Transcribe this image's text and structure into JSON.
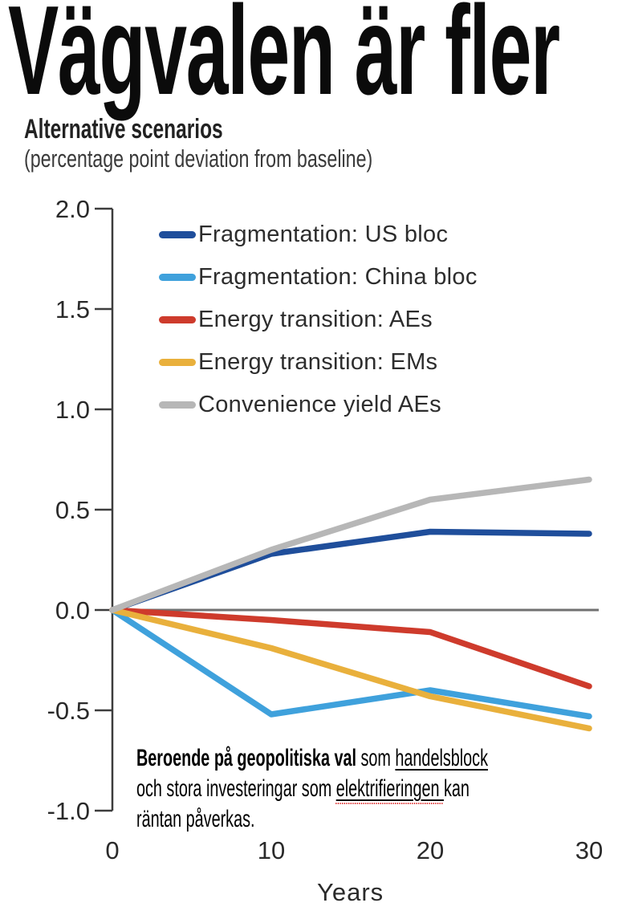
{
  "header": {
    "title": "Vägvalen är fler",
    "subtitle": "Alternative scenarios",
    "subtitle_note": "(percentage point deviation from baseline)"
  },
  "chart_data": {
    "type": "line",
    "title": "Alternative scenarios",
    "subtitle": "(percentage point deviation from baseline)",
    "x": [
      0,
      10,
      20,
      30
    ],
    "xticks": [
      "0",
      "10",
      "20",
      "30"
    ],
    "xlabel": "Years",
    "ylabel": "",
    "ylim": [
      -1.0,
      2.0
    ],
    "ytick_step": 0.5,
    "yticks": [
      "2.0",
      "1.5",
      "1.0",
      "0.5",
      "0.0",
      "-0.5",
      "-1.0"
    ],
    "grid": false,
    "zero_line": true,
    "legend_position": "inside-top-left",
    "series": [
      {
        "name": "Fragmentation: US bloc",
        "color": "#1F4E9B",
        "values": [
          0,
          0.28,
          0.39,
          0.38
        ]
      },
      {
        "name": "Fragmentation: China bloc",
        "color": "#3FA1DC",
        "values": [
          0,
          -0.52,
          -0.4,
          -0.53
        ]
      },
      {
        "name": "Energy transition: AEs",
        "color": "#CE3B2C",
        "values": [
          0,
          -0.05,
          -0.11,
          -0.38
        ]
      },
      {
        "name": "Energy transition: EMs",
        "color": "#E9B03C",
        "values": [
          0,
          -0.19,
          -0.43,
          -0.59
        ]
      },
      {
        "name": "Convenience yield AEs",
        "color": "#B7B7B7",
        "values": [
          0,
          0.3,
          0.55,
          0.65
        ]
      }
    ],
    "colors": {
      "axis": "#3d3d3d",
      "zero_line": "#717171"
    }
  },
  "annotation": {
    "segments": [
      {
        "text": "Beroende på geopolitiska val",
        "bold": true
      },
      {
        "text": " som ",
        "bold": false
      },
      {
        "text": "handelsblock",
        "underline": true
      },
      {
        "text": " och stora investeringar som ",
        "bold": false
      },
      {
        "text": "elektrifieringen ",
        "underline": true,
        "spellcheck": true
      },
      {
        "text": "kan räntan påverkas.",
        "bold": false
      }
    ]
  }
}
